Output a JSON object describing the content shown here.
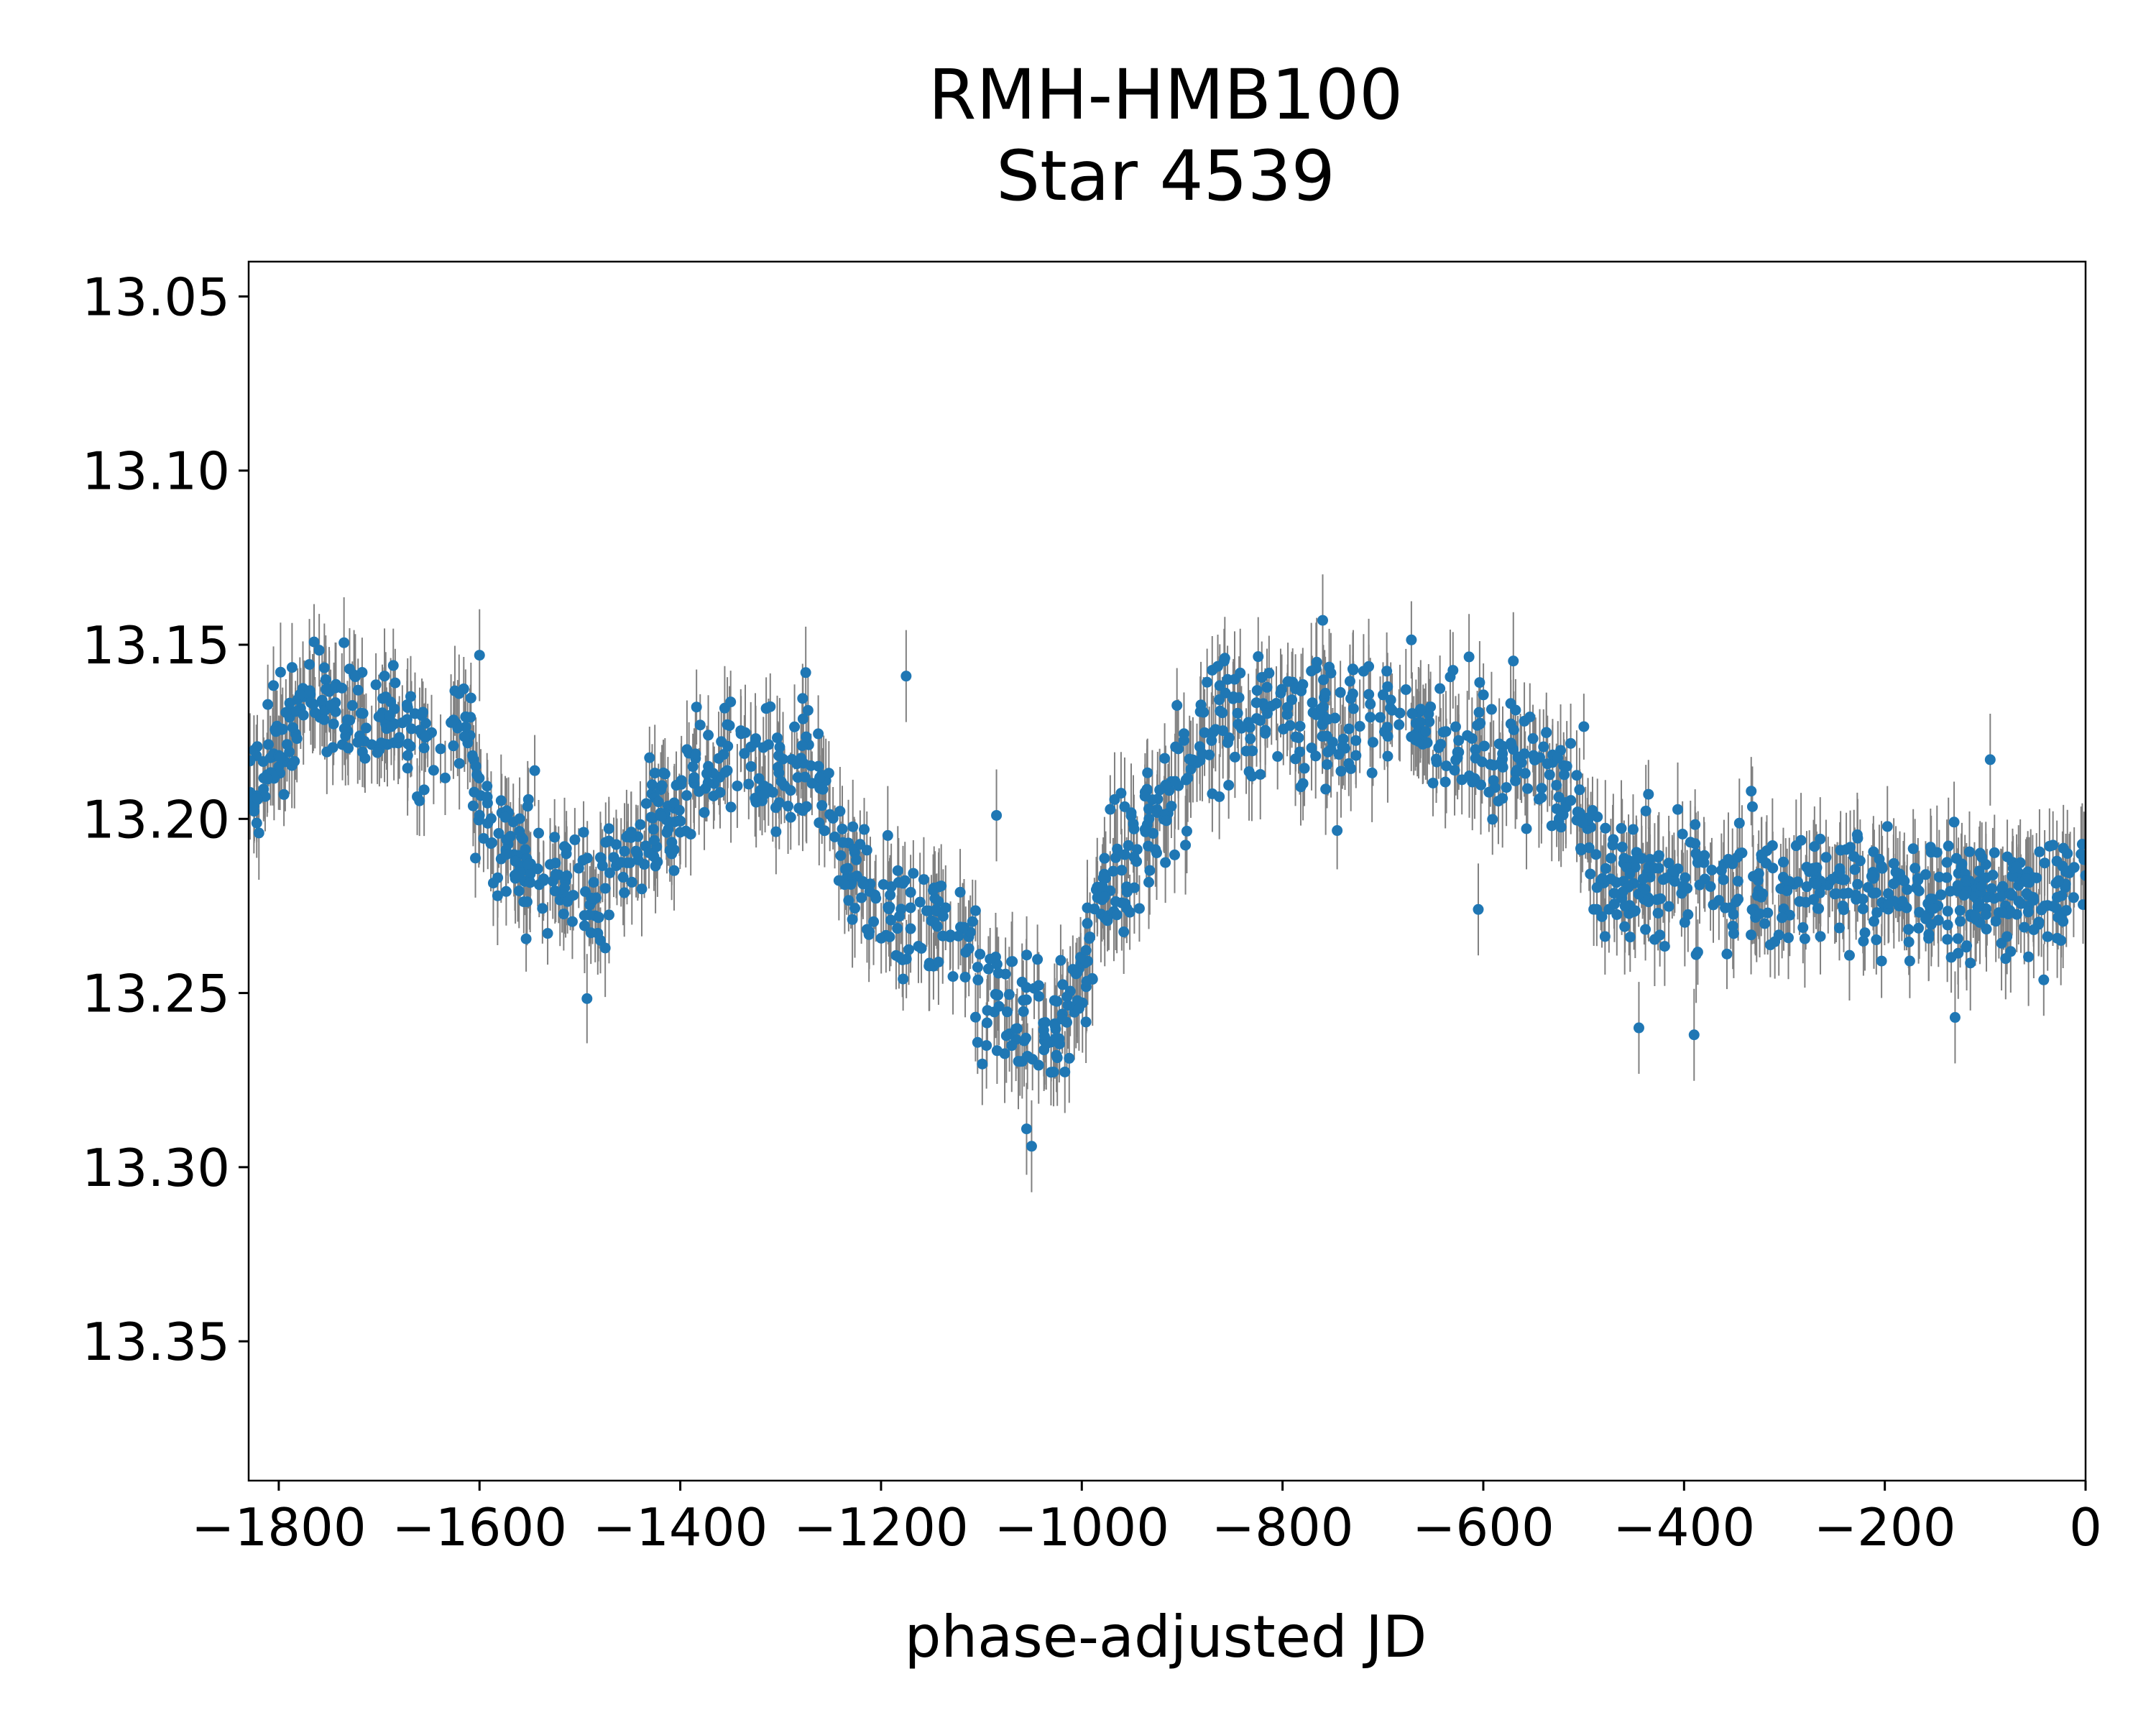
{
  "chart_data": {
    "type": "scatter",
    "title_line1": "RMH-HMB100",
    "title_line2": "Star 4539",
    "xlabel": "phase-adjusted JD",
    "ylabel": "",
    "xlim": [
      -1830,
      0
    ],
    "ylim": [
      13.39,
      13.04
    ],
    "y_inverted": true,
    "grid": false,
    "x_ticks": [
      -1800,
      -1600,
      -1400,
      -1200,
      -1000,
      -800,
      -600,
      -400,
      -200,
      0
    ],
    "x_tick_labels": [
      "−1800",
      "−1600",
      "−1400",
      "−1200",
      "−1000",
      "−800",
      "−600",
      "−400",
      "−200",
      "0"
    ],
    "y_ticks": [
      13.05,
      13.1,
      13.15,
      13.2,
      13.25,
      13.3,
      13.35
    ],
    "y_tick_labels": [
      "13.05",
      "13.10",
      "13.15",
      "13.20",
      "13.25",
      "13.30",
      "13.35"
    ],
    "marker_color": "#1f77b4",
    "errorbar_color": "#808080",
    "series": [
      {
        "trend": [
          [
            -1830,
            13.195
          ],
          [
            -1800,
            13.178
          ],
          [
            -1760,
            13.163
          ],
          [
            -1740,
            13.17
          ],
          [
            -1710,
            13.172
          ],
          [
            -1680,
            13.173
          ],
          [
            -1640,
            13.182
          ],
          [
            -1610,
            13.175
          ],
          [
            -1595,
            13.205
          ],
          [
            -1560,
            13.212
          ],
          [
            -1520,
            13.218
          ],
          [
            -1480,
            13.22
          ],
          [
            -1440,
            13.205
          ],
          [
            -1400,
            13.195
          ],
          [
            -1370,
            13.182
          ],
          [
            -1330,
            13.18
          ],
          [
            -1290,
            13.188
          ],
          [
            -1260,
            13.185
          ],
          [
            -1240,
            13.212
          ],
          [
            -1200,
            13.222
          ],
          [
            -1160,
            13.225
          ],
          [
            -1130,
            13.235
          ],
          [
            -1100,
            13.248
          ],
          [
            -1060,
            13.258
          ],
          [
            -1020,
            13.262
          ],
          [
            -1000,
            13.25
          ],
          [
            -985,
            13.222
          ],
          [
            -950,
            13.21
          ],
          [
            -920,
            13.195
          ],
          [
            -880,
            13.178
          ],
          [
            -850,
            13.172
          ],
          [
            -800,
            13.17
          ],
          [
            -760,
            13.172
          ],
          [
            -720,
            13.17
          ],
          [
            -680,
            13.17
          ],
          [
            -640,
            13.178
          ],
          [
            -600,
            13.182
          ],
          [
            -560,
            13.178
          ],
          [
            -520,
            13.195
          ],
          [
            -500,
            13.2
          ],
          [
            -490,
            13.215
          ],
          [
            -450,
            13.22
          ],
          [
            -400,
            13.222
          ],
          [
            -350,
            13.218
          ],
          [
            -300,
            13.222
          ],
          [
            -250,
            13.22
          ],
          [
            -200,
            13.222
          ],
          [
            -150,
            13.225
          ],
          [
            -100,
            13.222
          ],
          [
            -50,
            13.222
          ],
          [
            0,
            13.22
          ]
        ],
        "n_points": 1500,
        "scatter_sd": 0.009,
        "error_half_length": 0.011
      }
    ],
    "outliers": [
      [
        -1175,
        13.159
      ],
      [
        -1085,
        13.199
      ],
      [
        -1050,
        13.294
      ],
      [
        -1055,
        13.289
      ],
      [
        -760,
        13.143
      ],
      [
        -605,
        13.226
      ],
      [
        -445,
        13.26
      ],
      [
        -390,
        13.262
      ],
      [
        -130,
        13.257
      ],
      [
        -95,
        13.183
      ],
      [
        -1600,
        13.153
      ],
      [
        -1275,
        13.158
      ]
    ]
  }
}
